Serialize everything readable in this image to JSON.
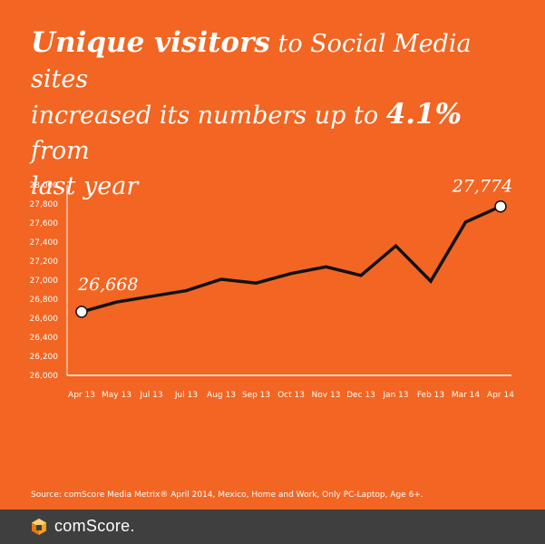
{
  "headline": {
    "line1_emphasis": "Unique visitors",
    "line1_rest": " to Social Media sites",
    "line2_prefix": "increased its numbers up to ",
    "line2_emphasis": "4.1%",
    "line2_suffix": " from",
    "line3": "last year"
  },
  "source": "Source: comScore Media Metrix® April 2014, Mexico, Home and Work, Only PC-Laptop, Age 6+.",
  "footer": {
    "logo_text": "comScore."
  },
  "colors": {
    "background": "#f26522",
    "line": "#111111",
    "text": "#ffffff",
    "footer": "#3f3f3f"
  },
  "chart_data": {
    "type": "line",
    "categories": [
      "Apr 13",
      "May 13",
      "Jul 13",
      "Jul 13",
      "Aug 13",
      "Sep 13",
      "Oct 13",
      "Nov 13",
      "Dec 13",
      "Jan 13",
      "Feb 13",
      "Mar 14",
      "Apr 14"
    ],
    "values": [
      26668,
      26770,
      26830,
      26890,
      27010,
      26970,
      27070,
      27140,
      27050,
      27360,
      26990,
      27610,
      27774
    ],
    "yticks": [
      "26,000",
      "26,200",
      "26,400",
      "26,600",
      "26,800",
      "27,000",
      "27,200",
      "27,400",
      "27,600",
      "27,800",
      "28,000"
    ],
    "ylim": [
      26000,
      28000
    ],
    "annotations": [
      {
        "index": 0,
        "text": "26,668"
      },
      {
        "index": 12,
        "text": "27,774"
      }
    ],
    "grid": false
  }
}
